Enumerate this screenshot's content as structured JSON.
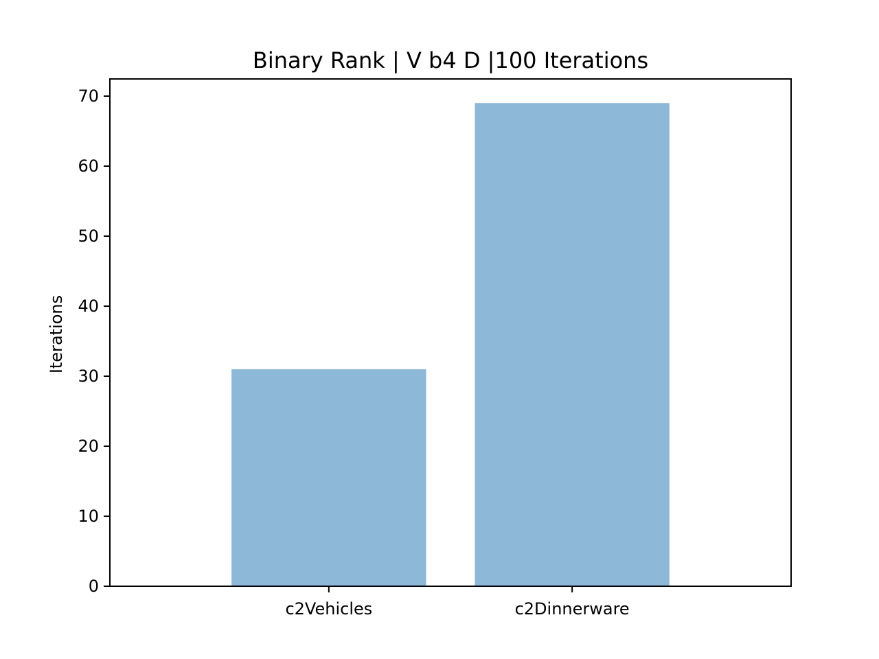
{
  "chart_data": {
    "type": "bar",
    "title": "Binary Rank | V b4 D |100 Iterations",
    "xlabel": "",
    "ylabel": "Iterations",
    "categories": [
      "c2Vehicles",
      "c2Dinnerware"
    ],
    "values": [
      31,
      69
    ],
    "yticks": [
      0,
      10,
      20,
      30,
      40,
      50,
      60,
      70
    ],
    "ylim": [
      0,
      72.45
    ],
    "grid": false,
    "bar_color": "#8db8d8"
  }
}
